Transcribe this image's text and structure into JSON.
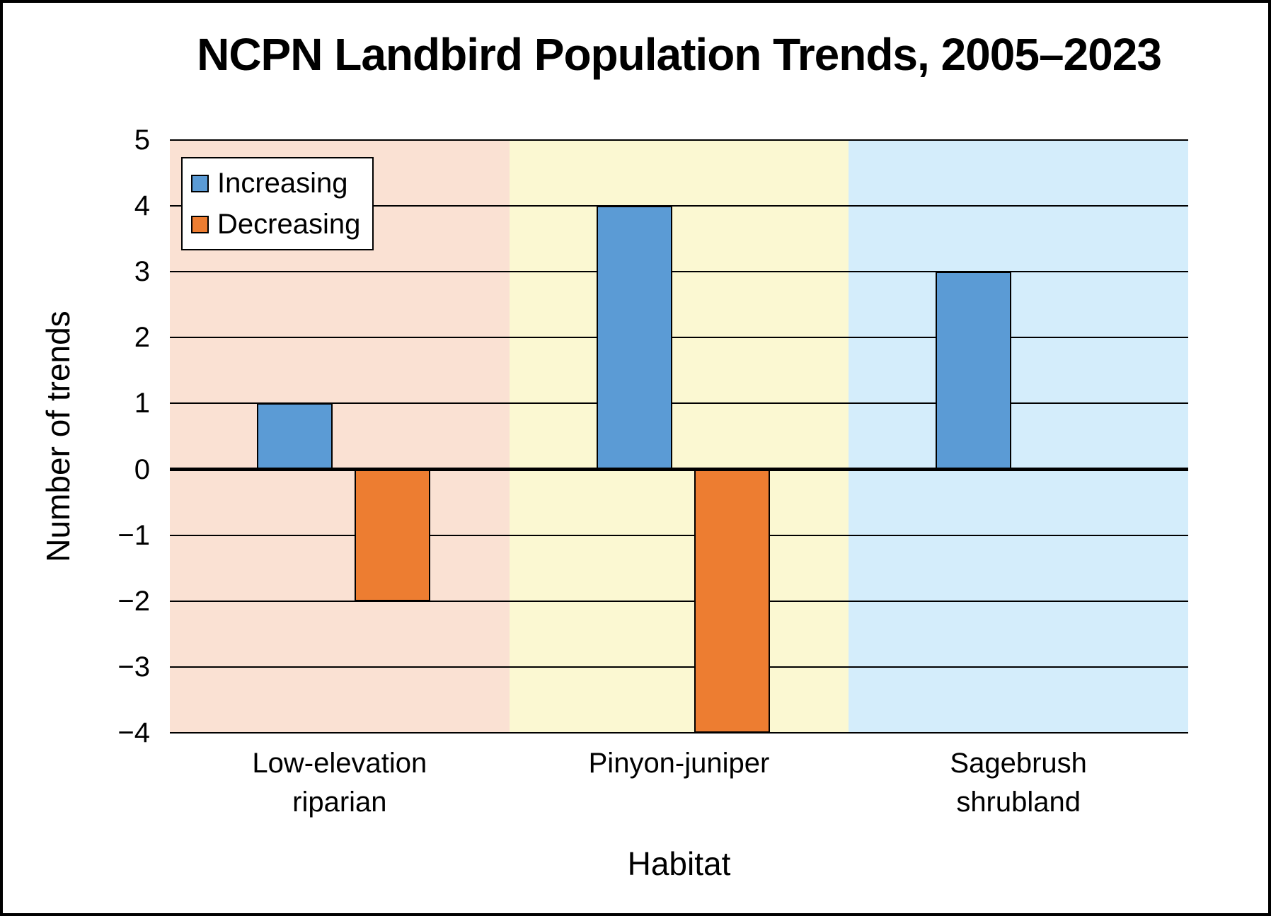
{
  "title": "NCPN Landbird Population Trends, 2005–2023",
  "chart_data": {
    "type": "bar",
    "title": "NCPN Landbird Population Trends, 2005–2023",
    "xlabel": "Habitat",
    "ylabel": "Number of trends",
    "categories": [
      "Low-elevation riparian",
      "Pinyon-juniper",
      "Sagebrush shrubland"
    ],
    "category_label_lines": [
      [
        "Low-elevation",
        "riparian"
      ],
      [
        "Pinyon-juniper"
      ],
      [
        "Sagebrush",
        "shrubland"
      ]
    ],
    "series": [
      {
        "name": "Increasing",
        "color": "#5B9BD5",
        "values": [
          1,
          4,
          3
        ]
      },
      {
        "name": "Decreasing",
        "color": "#ED7D31",
        "values": [
          -2,
          -4,
          0
        ]
      }
    ],
    "ylim": [
      -4,
      5
    ],
    "ytick_labels": [
      "5",
      "4",
      "3",
      "2",
      "1",
      "0",
      "−1",
      "−2",
      "−3",
      "−4"
    ],
    "grid": true,
    "legend_position": "top-left",
    "band_colors": [
      "#FAE1D3",
      "#FBF8D2",
      "#D4EDFB"
    ],
    "gridline_color": "#000000",
    "zero_line_color": "#000000"
  }
}
